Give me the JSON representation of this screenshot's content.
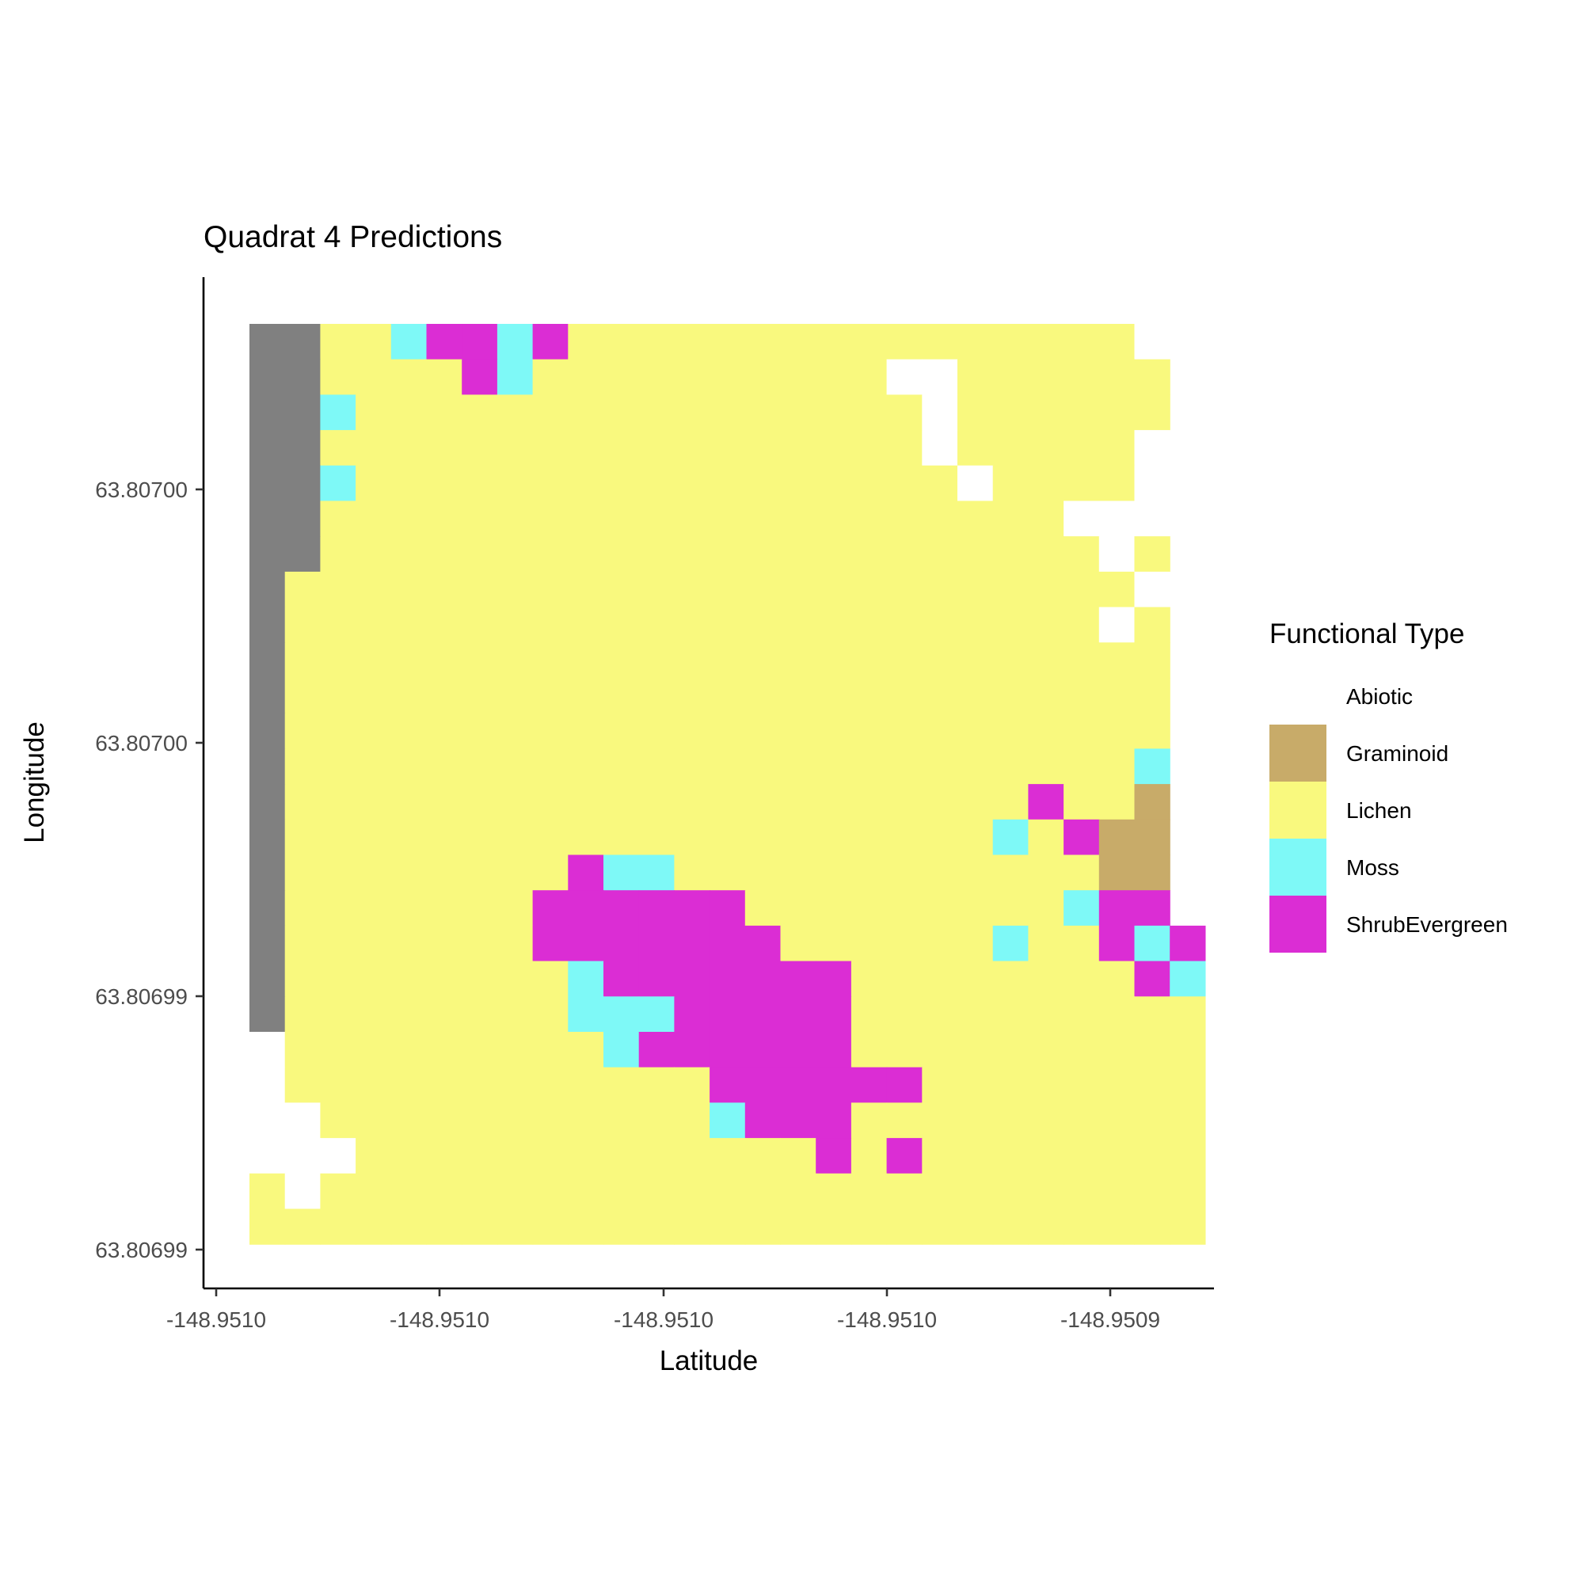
{
  "chart_data": {
    "type": "heatmap",
    "title": "Quadrat 4 Predictions",
    "xlabel": "Latitude",
    "ylabel": "Longitude",
    "x_ticks": [
      "-148.9510",
      "-148.9510",
      "-148.9510",
      "-148.9510",
      "-148.9509"
    ],
    "y_ticks": [
      "63.80700",
      "63.80700",
      "63.80699",
      "63.80699"
    ],
    "grid": false,
    "legend": {
      "title": "Functional Type",
      "position": "right",
      "entries": [
        {
          "label": "Abiotic",
          "code": "A",
          "color": "#ffffff"
        },
        {
          "label": "Graminoid",
          "code": "G",
          "color": "#c8ab69"
        },
        {
          "label": "Lichen",
          "code": "L",
          "color": "#f9f97e"
        },
        {
          "label": "Moss",
          "code": "M",
          "color": "#7ef9f7"
        },
        {
          "label": "ShrubEvergreen",
          "code": "S",
          "color": "#db2dd4"
        }
      ]
    },
    "unlabeled_class": {
      "code": "D",
      "color": "#808080"
    },
    "cells": [
      "DDLLMSSMSLLLLLLLLLLLLLLLLA",
      "DDLLLLSMLLLLLLLLLLAALLLLLL",
      "DDMLLLLLLLLLLLLLLLLALLLLLL",
      "DDLLLLLLLLLLLLLLLLLALLLLLA",
      "DDMLLLLLLLLLLLLLLLLLALLLLA",
      "DDLLLLLLLLLLLLLLLLLLLLLAAA",
      "DDLLLLLLLLLLLLLLLLLLLLLLAL",
      "DLLLLLLLLLLLLLLLLLLLLLLLLA",
      "DLLLLLLLLLLLLLLLLLLLLLLLAL",
      "DLLLLLLLLLLLLLLLLLLLLLLLLL",
      "DLLLLLLLLLLLLLLLLLLLLLLLLL",
      "DLLLLLLLLLLLLLLLLLLLLLLLLL",
      "DLLLLLLLLLLLLLLLLLLLLLLLLM",
      "DLLLLLLLLLLLLLLLLLLLLLSLLG",
      "DLLLLLLLLLLLLLLLLLLLLMLSGG",
      "DLLLLLLLLSMMLLLLLLLLLLLLGG",
      "DLLLLLLLSSSSSSLLLLLLLLLMSS",
      "DLLLLLLLSSSSSSSLLLLLLMLLSMS",
      "DLLLLLLLLMSSSSSSSLLLLLLLLSM",
      "DLLLLLLLLMMMSSSSSLLLLLLLLLL",
      "ALLLLLLLLLMSSSSSSLLLLLLLLLL",
      "ALLLLLLLLLLLLSSSSSSLLLLLLLL",
      "AALLLLLLLLLLLMSSSLLLLLLLLLL",
      "AAALLLLLLLLLLLLLSLSLLLLLLLL",
      "LALLLLLLLLLLLLLLLLLLLLLLLLL",
      "LLLLLLLLLLLLLLLLLLLLLLLLLLL"
    ]
  }
}
